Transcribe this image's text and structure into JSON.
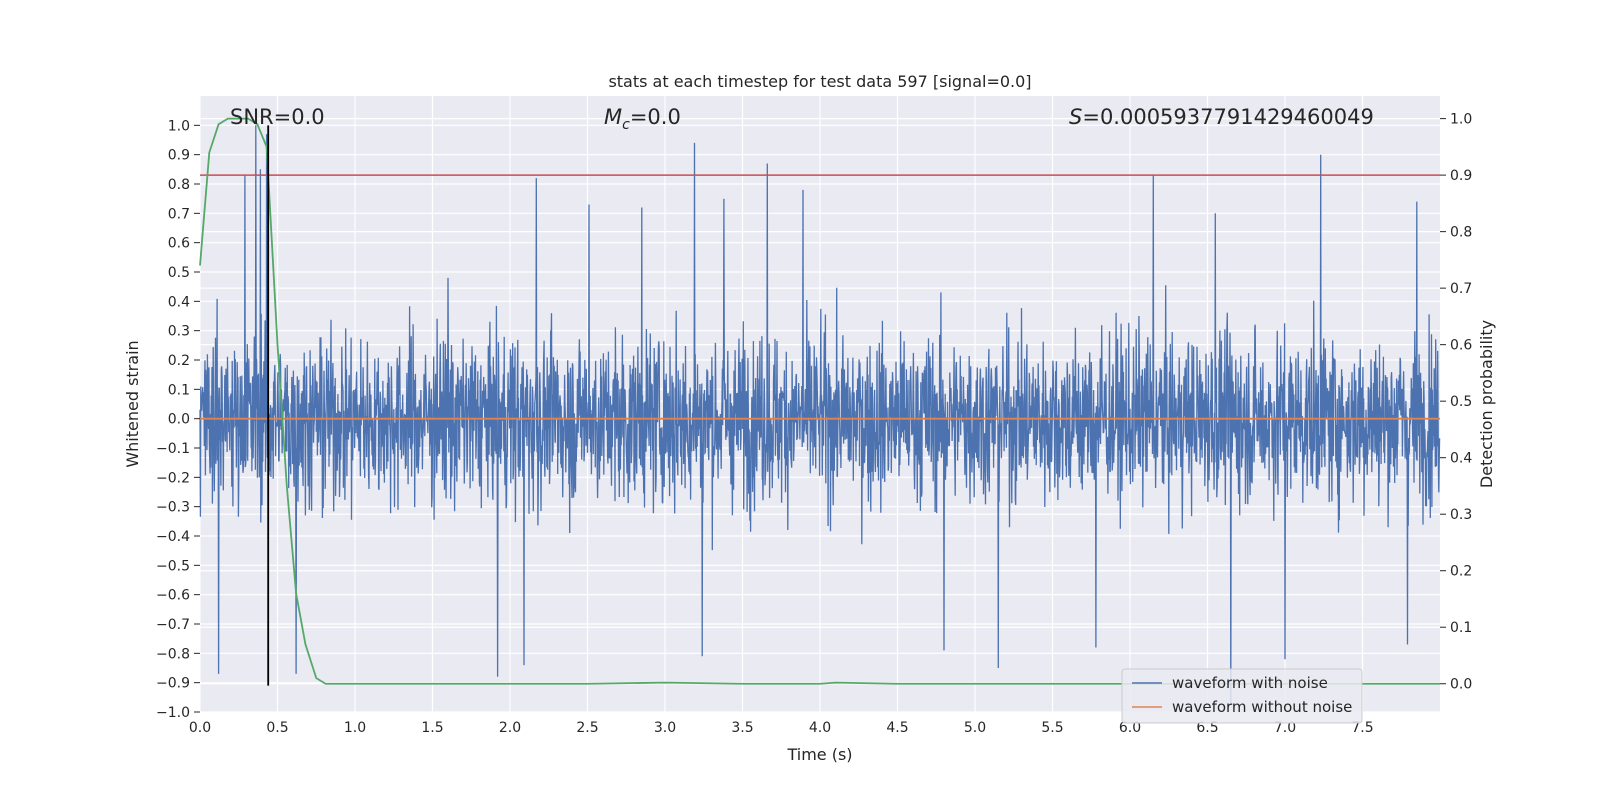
{
  "chart_data": {
    "type": "line",
    "title": "stats at each timestep for test data 597 [signal=0.0]",
    "xlabel": "Time (s)",
    "ylabel": "Whitened strain",
    "y2label": "Detection probability",
    "xlim": [
      0.0,
      8.0
    ],
    "ylim": [
      -1.0,
      1.1
    ],
    "y2lim": [
      -0.05,
      1.04
    ],
    "xticks": [
      "0.0",
      "0.5",
      "1.0",
      "1.5",
      "2.0",
      "2.5",
      "3.0",
      "3.5",
      "4.0",
      "4.5",
      "5.0",
      "5.5",
      "6.0",
      "6.5",
      "7.0",
      "7.5"
    ],
    "yticks": [
      "-1.0",
      "-0.9",
      "-0.8",
      "-0.7",
      "-0.6",
      "-0.5",
      "-0.4",
      "-0.3",
      "-0.2",
      "-0.1",
      "0.0",
      "0.1",
      "0.2",
      "0.3",
      "0.4",
      "0.5",
      "0.6",
      "0.7",
      "0.8",
      "0.9",
      "1.0"
    ],
    "y2ticks": [
      "0.0",
      "0.1",
      "0.2",
      "0.3",
      "0.4",
      "0.5",
      "0.6",
      "0.7",
      "0.8",
      "0.9",
      "1.0"
    ],
    "grid": true,
    "legend_position": "bottom-right",
    "annotations": {
      "snr": "SNR=0.0",
      "mc_symbol": "M",
      "mc_sub": "c",
      "mc_value": "=0.0",
      "s_symbol": "S",
      "s_value": "=0.0005937791429460049"
    },
    "series": [
      {
        "name": "waveform with noise",
        "axis": "left",
        "color": "#4c72b0",
        "style": "dense noise, amplitude mostly within ±0.5 with spikes up to ~1.0 and down to ~-0.9",
        "spikes": [
          [
            0.29,
            0.83
          ],
          [
            0.36,
            1.0
          ],
          [
            0.39,
            0.85
          ],
          [
            0.43,
            0.97
          ],
          [
            1.6,
            0.48
          ],
          [
            2.17,
            0.82
          ],
          [
            2.51,
            0.73
          ],
          [
            2.85,
            0.72
          ],
          [
            3.19,
            0.94
          ],
          [
            3.38,
            0.75
          ],
          [
            3.66,
            0.87
          ],
          [
            3.89,
            0.78
          ],
          [
            6.15,
            0.83
          ],
          [
            6.55,
            0.7
          ],
          [
            7.23,
            0.9
          ],
          [
            7.85,
            0.74
          ],
          [
            0.12,
            -0.87
          ],
          [
            0.62,
            -0.87
          ],
          [
            1.92,
            -0.88
          ],
          [
            2.09,
            -0.84
          ],
          [
            3.24,
            -0.81
          ],
          [
            4.8,
            -0.79
          ],
          [
            5.15,
            -0.85
          ],
          [
            5.78,
            -0.78
          ],
          [
            6.65,
            -0.97
          ],
          [
            7.0,
            -0.82
          ],
          [
            7.79,
            -0.77
          ]
        ]
      },
      {
        "name": "waveform without noise",
        "axis": "left",
        "color": "#dd8452",
        "x": [
          0.0,
          8.0
        ],
        "values": [
          0.0,
          0.0
        ]
      },
      {
        "name": "detection probability",
        "axis": "right",
        "color": "#55a868",
        "x": [
          0.0,
          0.06,
          0.12,
          0.18,
          0.25,
          0.31,
          0.37,
          0.43,
          0.5,
          0.56,
          0.62,
          0.68,
          0.75,
          0.81,
          1.5,
          2.5,
          3.0,
          3.5,
          4.0,
          4.1,
          4.5,
          5.0,
          6.0,
          7.0,
          8.0
        ],
        "values": [
          0.74,
          0.94,
          0.99,
          1.0,
          1.0,
          1.0,
          0.99,
          0.95,
          0.6,
          0.35,
          0.16,
          0.07,
          0.01,
          0.0,
          0.0,
          0.0,
          0.002,
          0.0,
          0.0,
          0.002,
          0.0,
          0.0,
          0.0,
          0.0,
          0.0
        ]
      }
    ],
    "threshold_line": {
      "axis": "right",
      "value": 0.9,
      "color": "#c44e52"
    },
    "marker_line": {
      "x": 0.44,
      "y_from": -0.91,
      "y_to": 1.0,
      "color": "#000000"
    }
  }
}
